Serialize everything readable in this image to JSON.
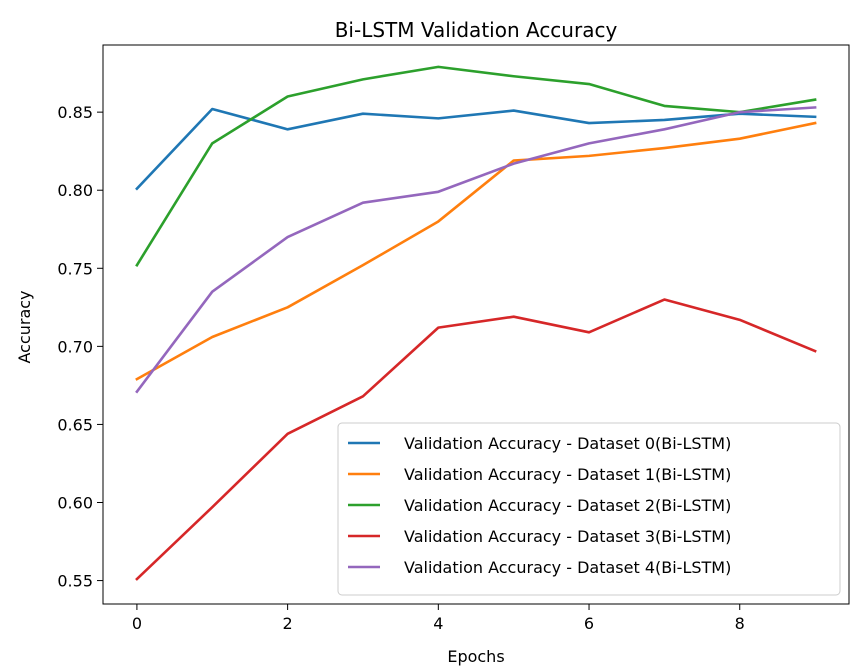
{
  "chart_data": {
    "type": "line",
    "title": "Bi-LSTM Validation Accuracy",
    "xlabel": "Epochs",
    "ylabel": "Accuracy",
    "x": [
      0,
      1,
      2,
      3,
      4,
      5,
      6,
      7,
      8,
      9
    ],
    "xticks": [
      0,
      2,
      4,
      6,
      8
    ],
    "xtick_labels": [
      "0",
      "2",
      "4",
      "6",
      "8"
    ],
    "yticks": [
      0.55,
      0.6,
      0.65,
      0.7,
      0.75,
      0.8,
      0.85
    ],
    "ytick_labels": [
      "0.55",
      "0.60",
      "0.65",
      "0.70",
      "0.75",
      "0.80",
      "0.85"
    ],
    "xlim": [
      -0.45,
      9.45
    ],
    "ylim": [
      0.535,
      0.893
    ],
    "grid": false,
    "legend_position": "lower-right",
    "series": [
      {
        "name": "Validation Accuracy - Dataset 0(Bi-LSTM)",
        "color": "#1f77b4",
        "values": [
          0.801,
          0.852,
          0.839,
          0.849,
          0.846,
          0.851,
          0.843,
          0.845,
          0.849,
          0.847
        ]
      },
      {
        "name": "Validation Accuracy - Dataset 1(Bi-LSTM)",
        "color": "#ff7f0e",
        "values": [
          0.679,
          0.706,
          0.725,
          0.752,
          0.78,
          0.819,
          0.822,
          0.827,
          0.833,
          0.843
        ]
      },
      {
        "name": "Validation Accuracy - Dataset 2(Bi-LSTM)",
        "color": "#2ca02c",
        "values": [
          0.752,
          0.83,
          0.86,
          0.871,
          0.879,
          0.873,
          0.868,
          0.854,
          0.85,
          0.858
        ]
      },
      {
        "name": "Validation Accuracy - Dataset 3(Bi-LSTM)",
        "color": "#d62728",
        "values": [
          0.551,
          0.597,
          0.644,
          0.668,
          0.712,
          0.719,
          0.709,
          0.73,
          0.717,
          0.697
        ]
      },
      {
        "name": "Validation Accuracy - Dataset 4(Bi-LSTM)",
        "color": "#9467bd",
        "values": [
          0.671,
          0.735,
          0.77,
          0.792,
          0.799,
          0.817,
          0.83,
          0.839,
          0.85,
          0.853
        ]
      }
    ]
  }
}
